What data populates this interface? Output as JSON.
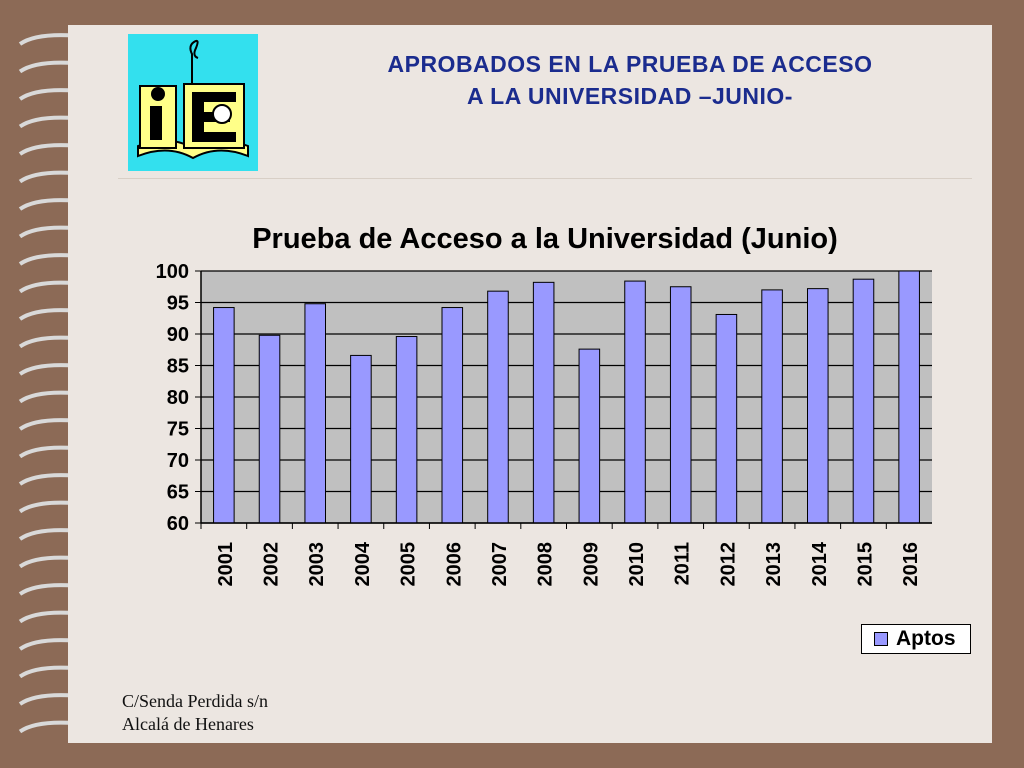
{
  "header": {
    "title_line1": "APROBADOS EN LA PRUEBA DE ACCESO",
    "title_line2": "A LA UNIVERSIDAD –JUNIO-"
  },
  "footer": {
    "address_line1": "C/Senda Perdida s/n",
    "address_line2": "Alcalá de Henares"
  },
  "colors": {
    "bar_fill": "#9999ff",
    "plot_bg": "#c0c0c0",
    "title_blue": "#1b2c8e",
    "logo_bg": "#33e0ee"
  },
  "chart_data": {
    "type": "bar",
    "title": "Prueba de Acceso a la Universidad  (Junio)",
    "xlabel": "",
    "ylabel": "",
    "ylim": [
      60,
      100
    ],
    "yticks": [
      60,
      65,
      70,
      75,
      80,
      85,
      90,
      95,
      100
    ],
    "categories": [
      "2001",
      "2002",
      "2003",
      "2004",
      "2005",
      "2006",
      "2007",
      "2008",
      "2009",
      "2010",
      "2011",
      "2012",
      "2013",
      "2014",
      "2015",
      "2016"
    ],
    "series": [
      {
        "name": "Aptos",
        "values": [
          94.2,
          89.8,
          94.8,
          86.6,
          89.6,
          94.2,
          96.8,
          98.2,
          87.6,
          98.4,
          97.5,
          93.1,
          97.0,
          97.2,
          98.7,
          100.0
        ]
      }
    ],
    "grid": true,
    "legend": "bottom-right"
  }
}
